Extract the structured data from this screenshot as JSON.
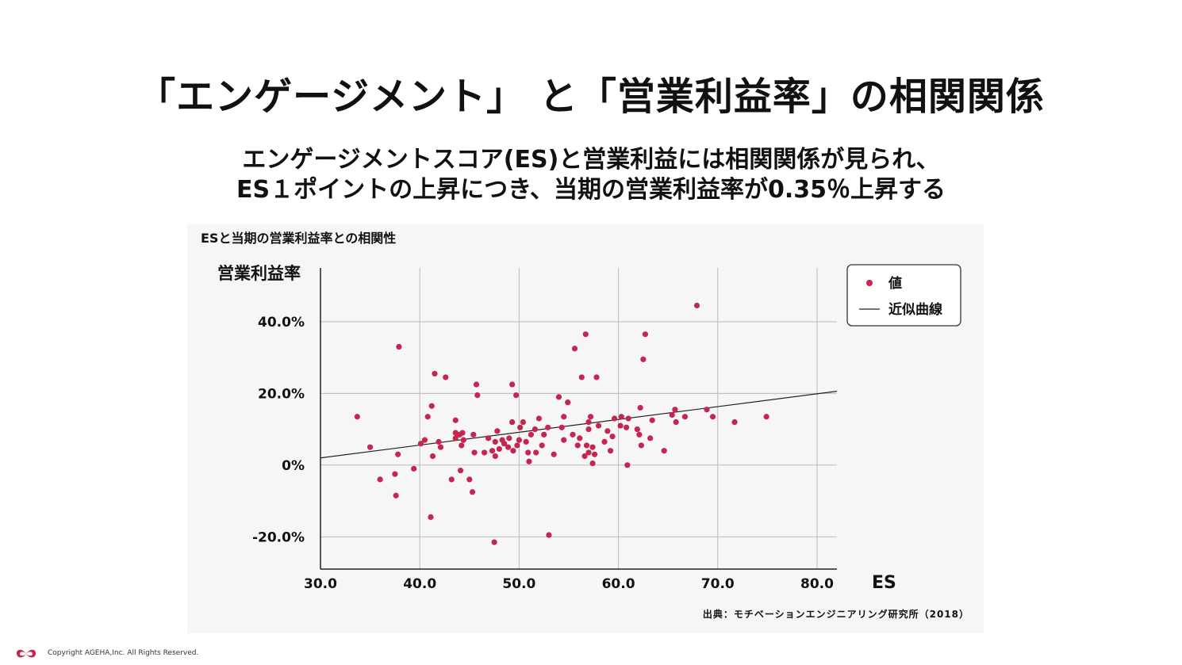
{
  "slide": {
    "title": "「エンゲージメント」 と「営業利益率」の相関関係",
    "subtitle_line1": "エンゲージメントスコア(ES)と営業利益には相関関係が見られ、",
    "subtitle_line2": "ES１ポイントの上昇につき、当期の営業利益率が0.35％上昇する",
    "source": "出典：モチベーションエンジニアリング研究所（2018）",
    "copyright": "Copyright AGEHA,Inc. All Rights Reserved.",
    "logo_text": "AGEHA"
  },
  "colors": {
    "point": "#c4264f",
    "line": "#222222",
    "grid": "#bbbbbb",
    "panel": "#f6f6f6"
  },
  "chart_data": {
    "type": "scatter",
    "title": "ESと当期の営業利益率との相関性",
    "xlabel": "ES",
    "ylabel": "営業利益率",
    "xlim": [
      30,
      82
    ],
    "ylim": [
      -29,
      55
    ],
    "xticks": [
      30,
      40,
      50,
      60,
      70,
      80
    ],
    "xtick_labels": [
      "30.0",
      "40.0",
      "50.0",
      "60.0",
      "70.0",
      "80.0"
    ],
    "yticks": [
      -20,
      0,
      20,
      40
    ],
    "ytick_labels": [
      "-20.0%",
      "0%",
      "20.0%",
      "40.0%"
    ],
    "grid": true,
    "legend": {
      "placement": "top-right",
      "points_label": "値",
      "line_label": "近似曲線"
    },
    "trendline": {
      "x": [
        30,
        82
      ],
      "y": [
        2.0,
        20.6
      ]
    },
    "series": [
      {
        "points": [
          [
            33.7,
            13.5
          ],
          [
            35.0,
            5.0
          ],
          [
            36.0,
            -4.0
          ],
          [
            37.5,
            -2.5
          ],
          [
            37.6,
            -8.5
          ],
          [
            37.8,
            3.0
          ],
          [
            37.9,
            33.0
          ],
          [
            39.4,
            -1.0
          ],
          [
            40.1,
            6.0
          ],
          [
            40.5,
            7.0
          ],
          [
            40.8,
            13.5
          ],
          [
            41.1,
            -14.5
          ],
          [
            41.2,
            16.5
          ],
          [
            41.3,
            2.5
          ],
          [
            41.5,
            25.5
          ],
          [
            41.9,
            6.5
          ],
          [
            42.1,
            5.0
          ],
          [
            42.6,
            24.5
          ],
          [
            43.2,
            -4.0
          ],
          [
            43.6,
            12.5
          ],
          [
            43.6,
            9.0
          ],
          [
            43.6,
            7.5
          ],
          [
            44.0,
            8.5
          ],
          [
            44.1,
            -1.5
          ],
          [
            44.2,
            5.5
          ],
          [
            44.3,
            9.0
          ],
          [
            44.4,
            7.0
          ],
          [
            45.0,
            -4.0
          ],
          [
            45.3,
            -7.5
          ],
          [
            45.4,
            8.5
          ],
          [
            45.5,
            3.5
          ],
          [
            45.7,
            22.5
          ],
          [
            45.8,
            19.5
          ],
          [
            46.5,
            3.5
          ],
          [
            46.9,
            7.5
          ],
          [
            47.3,
            4.0
          ],
          [
            47.5,
            -21.5
          ],
          [
            47.6,
            6.5
          ],
          [
            47.6,
            2.5
          ],
          [
            47.8,
            9.5
          ],
          [
            48.0,
            4.5
          ],
          [
            48.3,
            7.0
          ],
          [
            48.5,
            6.0
          ],
          [
            48.9,
            5.0
          ],
          [
            49.0,
            7.5
          ],
          [
            49.3,
            12.0
          ],
          [
            49.3,
            22.5
          ],
          [
            49.4,
            4.0
          ],
          [
            49.7,
            19.5
          ],
          [
            49.8,
            5.5
          ],
          [
            50.0,
            7.0
          ],
          [
            50.1,
            10.5
          ],
          [
            50.4,
            12.0
          ],
          [
            50.7,
            6.5
          ],
          [
            50.9,
            3.5
          ],
          [
            51.0,
            1.0
          ],
          [
            51.2,
            8.5
          ],
          [
            51.6,
            10.0
          ],
          [
            51.7,
            3.5
          ],
          [
            52.0,
            13.0
          ],
          [
            52.3,
            5.5
          ],
          [
            52.5,
            8.5
          ],
          [
            52.9,
            10.5
          ],
          [
            53.0,
            -19.5
          ],
          [
            53.5,
            3.0
          ],
          [
            54.0,
            19.0
          ],
          [
            54.3,
            10.5
          ],
          [
            54.5,
            13.5
          ],
          [
            54.5,
            7.0
          ],
          [
            54.9,
            17.5
          ],
          [
            55.4,
            8.5
          ],
          [
            55.6,
            32.5
          ],
          [
            55.9,
            5.5
          ],
          [
            56.1,
            7.5
          ],
          [
            56.3,
            24.5
          ],
          [
            56.6,
            2.5
          ],
          [
            56.7,
            36.5
          ],
          [
            56.8,
            5.5
          ],
          [
            57.0,
            10.0
          ],
          [
            57.0,
            3.5
          ],
          [
            57.0,
            12.0
          ],
          [
            57.2,
            13.5
          ],
          [
            57.4,
            0.5
          ],
          [
            57.4,
            5.0
          ],
          [
            57.6,
            3.0
          ],
          [
            57.8,
            24.5
          ],
          [
            58.0,
            11.0
          ],
          [
            58.6,
            6.5
          ],
          [
            58.9,
            9.5
          ],
          [
            59.2,
            4.0
          ],
          [
            59.4,
            8.0
          ],
          [
            59.6,
            13.0
          ],
          [
            60.2,
            11.0
          ],
          [
            60.3,
            13.5
          ],
          [
            60.8,
            10.5
          ],
          [
            60.9,
            0.0
          ],
          [
            61.0,
            13.0
          ],
          [
            61.9,
            10.0
          ],
          [
            62.1,
            8.5
          ],
          [
            62.2,
            16.0
          ],
          [
            62.3,
            5.5
          ],
          [
            62.5,
            29.5
          ],
          [
            62.7,
            36.5
          ],
          [
            63.2,
            7.5
          ],
          [
            63.4,
            12.5
          ],
          [
            64.6,
            4.0
          ],
          [
            65.4,
            14.0
          ],
          [
            65.7,
            15.5
          ],
          [
            65.8,
            12.0
          ],
          [
            66.7,
            13.5
          ],
          [
            67.9,
            44.5
          ],
          [
            68.9,
            15.5
          ],
          [
            69.5,
            13.5
          ],
          [
            71.7,
            12.0
          ],
          [
            74.9,
            13.5
          ]
        ]
      }
    ]
  }
}
